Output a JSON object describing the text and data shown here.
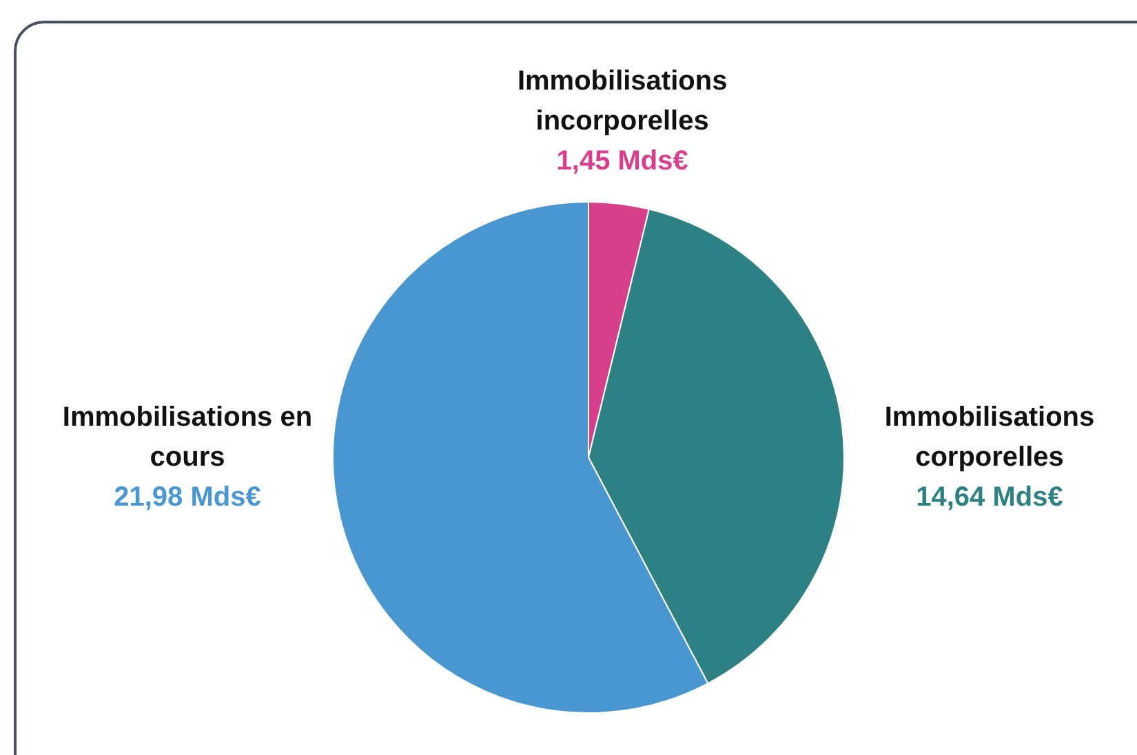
{
  "chart_data": {
    "type": "pie",
    "categories": [
      "Immobilisations incorporelles",
      "Immobilisations corporelles",
      "Immobilisations en cours"
    ],
    "values": [
      1.45,
      14.64,
      21.98
    ],
    "colors": [
      "#d6408b",
      "#2e8082",
      "#4a97cf"
    ],
    "value_labels": [
      "1,45 Mds€",
      "14,64 Mds€",
      "21,98 Mds€"
    ]
  }
}
